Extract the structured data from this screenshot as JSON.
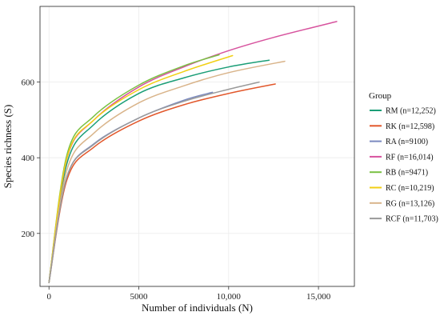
{
  "chart_data": {
    "type": "line",
    "title": "",
    "xlabel": "Number of individuals (N)",
    "ylabel": "Species richness (S)",
    "xlim": [
      -500,
      17000
    ],
    "ylim": [
      60,
      800
    ],
    "xticks": [
      0,
      5000,
      10000,
      15000
    ],
    "xtick_labels": [
      "0",
      "5000",
      "10,000",
      "15,000"
    ],
    "yticks": [
      200,
      400,
      600
    ],
    "ytick_labels": [
      "200",
      "400",
      "600"
    ],
    "grid": true,
    "legend": {
      "title": "Group",
      "placement": "right"
    },
    "series": [
      {
        "name": "RM (n=12,252)",
        "color": "#1b9e77",
        "x": [
          0,
          1000,
          2500,
          5000,
          7500,
          10000,
          12252
        ],
        "y": [
          70,
          385,
          488,
          570,
          611,
          640,
          658
        ]
      },
      {
        "name": "RK (n=12,598)",
        "color": "#e2572b",
        "x": [
          0,
          1000,
          2500,
          5000,
          7500,
          10000,
          12598
        ],
        "y": [
          70,
          342,
          428,
          497,
          540,
          570,
          595
        ]
      },
      {
        "name": "RA (n=9100)",
        "color": "#7b8ac0",
        "x": [
          0,
          1000,
          2500,
          5000,
          7500,
          9100
        ],
        "y": [
          70,
          350,
          437,
          505,
          552,
          573
        ]
      },
      {
        "name": "RF (n=16,014)",
        "color": "#d7539e",
        "x": [
          0,
          1000,
          2500,
          5000,
          7500,
          10000,
          12500,
          16014
        ],
        "y": [
          70,
          398,
          500,
          587,
          640,
          683,
          718,
          760
        ]
      },
      {
        "name": "RB (n=9471)",
        "color": "#7ac143",
        "x": [
          0,
          1000,
          2500,
          5000,
          7500,
          9471
        ],
        "y": [
          70,
          408,
          510,
          592,
          643,
          672
        ]
      },
      {
        "name": "RC (n=10,219)",
        "color": "#f2cf14",
        "x": [
          0,
          1000,
          2500,
          5000,
          7500,
          10219
        ],
        "y": [
          70,
          400,
          500,
          580,
          628,
          670
        ]
      },
      {
        "name": "RG (n=13,126)",
        "color": "#d9b48a",
        "x": [
          0,
          1000,
          2500,
          5000,
          7500,
          10000,
          13126
        ],
        "y": [
          70,
          368,
          465,
          545,
          590,
          625,
          655
        ]
      },
      {
        "name": "RCF (n=11,703)",
        "color": "#9a9a9a",
        "x": [
          0,
          1000,
          2500,
          5000,
          7500,
          10000,
          11703
        ],
        "y": [
          70,
          350,
          435,
          505,
          549,
          581,
          600
        ]
      }
    ]
  }
}
